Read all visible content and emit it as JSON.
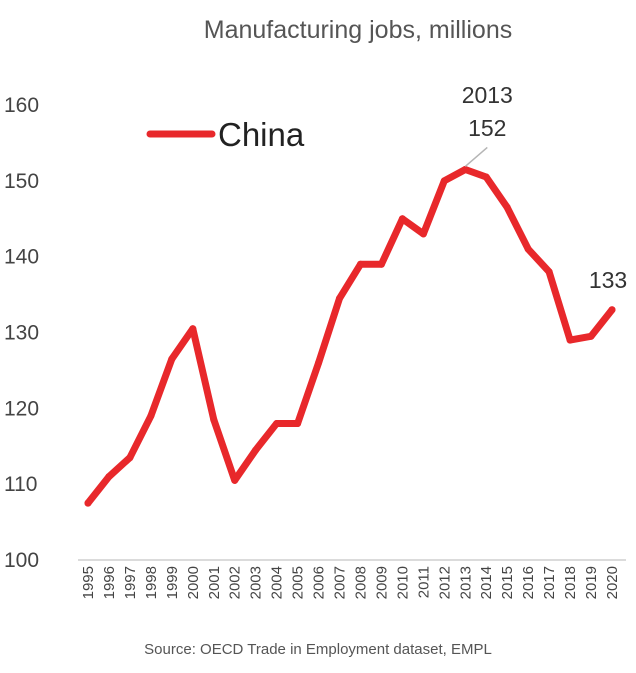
{
  "chart_data": {
    "type": "line",
    "title": "Manufacturing jobs, millions",
    "source": "Source: OECD Trade in Employment dataset, EMPL",
    "x": [
      "1995",
      "1996",
      "1997",
      "1998",
      "1999",
      "2000",
      "2001",
      "2002",
      "2003",
      "2004",
      "2005",
      "2006",
      "2007",
      "2008",
      "2009",
      "2010",
      "2011",
      "2012",
      "2013",
      "2014",
      "2015",
      "2016",
      "2017",
      "2018",
      "2019",
      "2020"
    ],
    "series": [
      {
        "name": "China",
        "color": "#e8282b",
        "values": [
          107.5,
          111,
          113.5,
          119,
          126.5,
          130.5,
          118.5,
          110.5,
          114.5,
          118,
          118,
          126,
          134.5,
          139,
          139,
          145,
          143,
          150,
          151.5,
          150.5,
          146.5,
          141,
          138,
          129,
          129.5,
          133
        ]
      }
    ],
    "yticks": [
      "100",
      "110",
      "120",
      "130",
      "140",
      "150",
      "160"
    ],
    "ylim": [
      100,
      160
    ],
    "grid": false,
    "legend": {
      "position": "top-left",
      "label": "China"
    },
    "annotations": [
      {
        "x": "2013",
        "year_label": "2013",
        "value_label": "152"
      },
      {
        "x": "2020",
        "value_label": "133"
      }
    ]
  }
}
